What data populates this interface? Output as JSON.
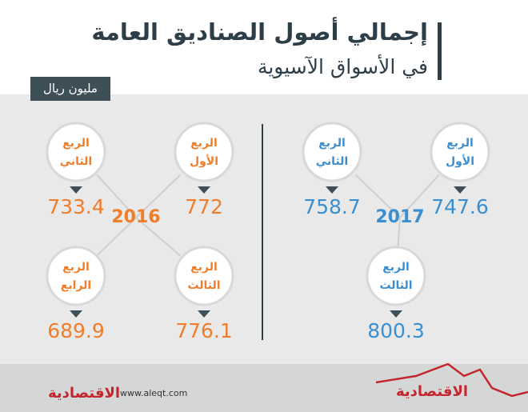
{
  "title": "إجمالي أصول الصناديق العامة",
  "subtitle": "في الأسواق الآسيوية",
  "unit": "مليون ريال",
  "panels": [
    {
      "year": 2016,
      "color": "#f07d2a",
      "quarters": [
        {
          "label": [
            "الربع",
            "الأول"
          ],
          "value": 772
        },
        {
          "label": [
            "الربع",
            "الثاني"
          ],
          "value": 733.4
        },
        {
          "label": [
            "الربع",
            "الثالث"
          ],
          "value": 776.1
        },
        {
          "label": [
            "الربع",
            "الرابع"
          ],
          "value": 689.9
        }
      ]
    },
    {
      "year": 2017,
      "color": "#3b8fd0",
      "quarters": [
        {
          "label": [
            "الربع",
            "الأول"
          ],
          "value": 747.6
        },
        {
          "label": [
            "الربع",
            "الثاني"
          ],
          "value": 758.7
        },
        {
          "label": [
            "الربع",
            "الثالث"
          ],
          "value": 800.3
        }
      ]
    }
  ],
  "footer": {
    "logo": "الاقتصادية",
    "url": "www.aleqt.com"
  }
}
